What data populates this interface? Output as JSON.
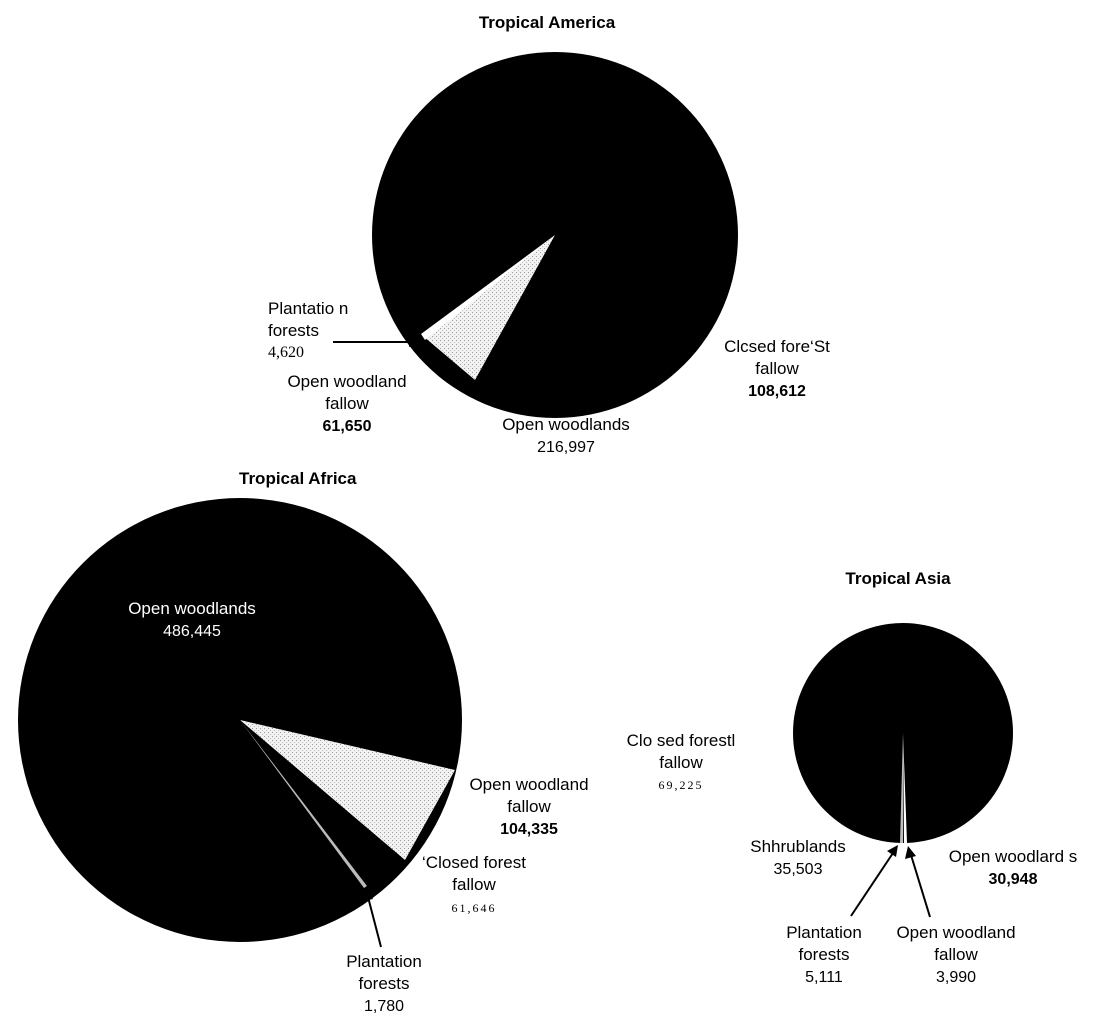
{
  "chart_data": [
    {
      "type": "pie",
      "title": "Tropical America",
      "slices": [
        {
          "label": "Closed forest fallow",
          "display_label": "Clcsed fore‘St fallow",
          "value": 108612
        },
        {
          "label": "Open woodlands",
          "value": 216997
        },
        {
          "label": "Open woodland fallow",
          "value": 61650
        },
        {
          "label": "Plantation forests",
          "display_label": "Plantatio n forests",
          "value": 4620
        }
      ],
      "value_labels": [
        "108,612",
        "216,997",
        "61,650",
        "4,620"
      ]
    },
    {
      "type": "pie",
      "title": "Tropical Africa",
      "slices": [
        {
          "label": "Open woodlands",
          "value": 486445
        },
        {
          "label": "Open woodland fallow",
          "value": 104335
        },
        {
          "label": "Closed forest fallow",
          "display_label": "‘Closed forest fallow",
          "value": 61646
        },
        {
          "label": "Plantation forests",
          "value": 1780
        }
      ],
      "value_labels": [
        "486,445",
        "104,335",
        "61,646",
        "1,780"
      ]
    },
    {
      "type": "pie",
      "title": "Tropical Asia",
      "slices": [
        {
          "label": "Closed forest fallow",
          "display_label": "Clo sed forestl fallow",
          "value": 69225
        },
        {
          "label": "Shrublands",
          "display_label": "Shhrublands",
          "value": 35503
        },
        {
          "label": "Open woodlands",
          "display_label": "Open woodlard s",
          "value": 30948
        },
        {
          "label": "Plantation forests",
          "value": 5111
        },
        {
          "label": "Open woodland fallow",
          "value": 3990
        }
      ],
      "value_labels": [
        "69,225",
        "35,503",
        "30,948",
        "5,111",
        "3,990"
      ]
    }
  ],
  "colors": {
    "dark": "#000000",
    "light": "#ececec",
    "background": "#ffffff"
  },
  "text": {
    "america": {
      "title": "Tropical America",
      "plantation_1": "Plantatio n",
      "plantation_2": "forests",
      "plantation_v": "4,620",
      "owf_1": "Open woodland",
      "owf_2": "fallow",
      "owf_v": "61,650",
      "ow_1": "Open woodlands",
      "ow_v": "216,997",
      "cff_1": "Clcsed fore‘St",
      "cff_2": "fallow",
      "cff_v": "108,612"
    },
    "africa": {
      "title": "Tropical Africa",
      "ow_1": "Open woodlands",
      "ow_v": "486,445",
      "owf_1": "Open woodland",
      "owf_2": "fallow",
      "owf_v": "104,335",
      "cff_1": "‘Closed forest",
      "cff_2": "fallow",
      "cff_v": "61,646",
      "plant_1": "Plantation",
      "plant_2": "forests",
      "plant_v": "1,780"
    },
    "asia": {
      "title": "Tropical Asia",
      "cff_1": "Clo sed forestl",
      "cff_2": "fallow",
      "cff_v": "69,225",
      "shrub_1": "Shhrublands",
      "shrub_v": "35,503",
      "ow_1": "Open woodlard s",
      "ow_v": "30,948",
      "plant_1": "Plantation",
      "plant_2": "forests",
      "plant_v": "5,111",
      "owf_1": "Open woodland",
      "owf_2": "fallow",
      "owf_v": "3,990"
    }
  }
}
